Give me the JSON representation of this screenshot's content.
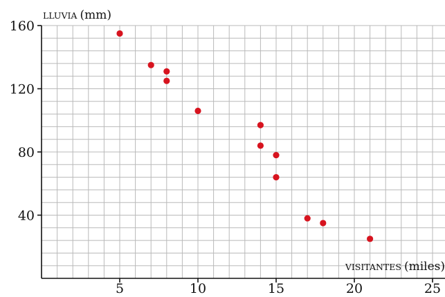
{
  "chart_data": {
    "type": "scatter",
    "title": "",
    "xlabel_small": "VISITANTES",
    "xlabel_paren": "(miles)",
    "ylabel_small": "LLUVIA",
    "ylabel_paren": "(mm)",
    "xlim": [
      0,
      25.5
    ],
    "ylim": [
      0,
      160
    ],
    "x_ticks": [
      5,
      10,
      15,
      20,
      25
    ],
    "y_ticks": [
      40,
      80,
      120,
      160
    ],
    "grid": true,
    "grid_minor_x": 1,
    "grid_minor_y": 8,
    "point_color": "#d7141f",
    "grid_color": "#b9b9b9",
    "points": [
      {
        "x": 5,
        "y": 155
      },
      {
        "x": 7,
        "y": 135
      },
      {
        "x": 8,
        "y": 131
      },
      {
        "x": 8,
        "y": 125
      },
      {
        "x": 10,
        "y": 106
      },
      {
        "x": 14,
        "y": 97
      },
      {
        "x": 14,
        "y": 84
      },
      {
        "x": 15,
        "y": 78
      },
      {
        "x": 15,
        "y": 64
      },
      {
        "x": 17,
        "y": 38
      },
      {
        "x": 18,
        "y": 35
      },
      {
        "x": 21,
        "y": 25
      }
    ]
  }
}
